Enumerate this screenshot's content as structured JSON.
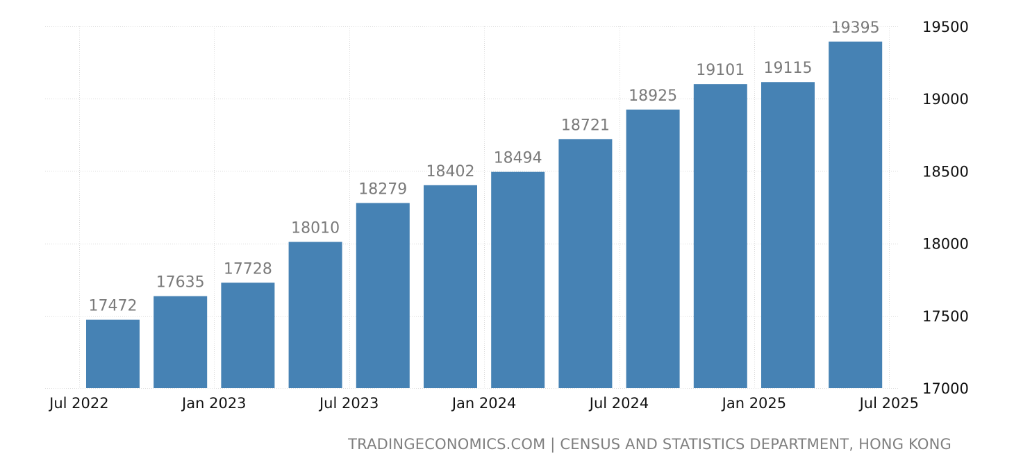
{
  "chart_data": {
    "type": "bar",
    "categories": [
      "Q3 2022",
      "Q4 2022",
      "Q1 2023",
      "Q2 2023",
      "Q3 2023",
      "Q4 2023",
      "Q1 2024",
      "Q2 2024",
      "Q3 2024",
      "Q4 2024",
      "Q1 2025",
      "Q2 2025"
    ],
    "values": [
      17472,
      17635,
      17728,
      18010,
      18279,
      18402,
      18494,
      18721,
      18925,
      19101,
      19115,
      19395
    ],
    "ylim": [
      17000,
      19500
    ],
    "yticks": [
      17000,
      17500,
      18000,
      18500,
      19000,
      19500
    ],
    "ytick_labels": [
      "17000",
      "17500",
      "18000",
      "18500",
      "19000",
      "19500"
    ],
    "xtick_labels": [
      "Jul 2022",
      "Jan 2023",
      "Jul 2023",
      "Jan 2024",
      "Jul 2024",
      "Jan 2025",
      "Jul 2025"
    ],
    "xtick_positions": [
      -0.5,
      1.5,
      3.5,
      5.5,
      7.5,
      9.5,
      11.5
    ],
    "y_axis_side": "right",
    "grid": true,
    "bar_color": "#4682b4",
    "label_color": "#7a7a7a",
    "title": "",
    "xlabel": "",
    "ylabel": ""
  },
  "source": {
    "text": "TRADINGECONOMICS.COM | CENSUS AND STATISTICS DEPARTMENT, HONG KONG"
  }
}
